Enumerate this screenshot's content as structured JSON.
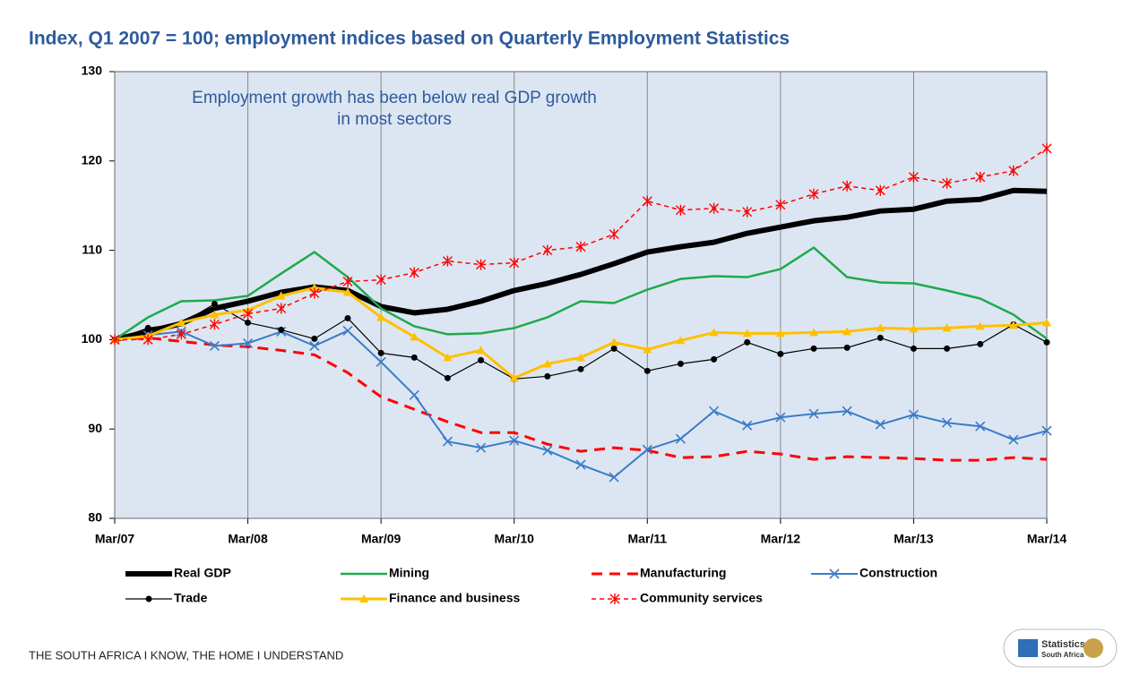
{
  "chart_data": {
    "type": "line",
    "title": "Index, Q1 2007 = 100; employment indices based on Quarterly Employment Statistics",
    "annotation": [
      "Employment growth has been below real GDP growth",
      "in most sectors"
    ],
    "categories": [
      "Mar/07",
      null,
      null,
      null,
      "Mar/08",
      null,
      null,
      null,
      "Mar/09",
      null,
      null,
      null,
      "Mar/10",
      null,
      null,
      null,
      "Mar/11",
      null,
      null,
      null,
      "Mar/12",
      null,
      null,
      null,
      "Mar/13",
      null,
      null,
      null,
      "Mar/14"
    ],
    "ylim": [
      80,
      130
    ],
    "yticks": [
      80,
      90,
      100,
      110,
      120,
      130
    ],
    "xgrid": true,
    "background": "#dce6f2",
    "legend": "bottom",
    "series": [
      {
        "name": "Real GDP",
        "color": "#000000",
        "width": 6,
        "dash": null,
        "marker": null,
        "values": [
          100,
          100.9,
          101.8,
          103.5,
          104.3,
          105.3,
          105.9,
          105.5,
          103.7,
          103.0,
          103.4,
          104.3,
          105.5,
          106.3,
          107.3,
          108.5,
          109.8,
          110.4,
          110.9,
          111.9,
          112.6,
          113.3,
          113.7,
          114.4,
          114.6,
          115.5,
          115.7,
          116.7,
          116.6
        ]
      },
      {
        "name": "Mining",
        "color": "#1faa4a",
        "width": 2.5,
        "dash": null,
        "marker": null,
        "values": [
          100,
          102.5,
          104.3,
          104.4,
          104.9,
          107.4,
          109.8,
          107.0,
          103.5,
          101.5,
          100.6,
          100.7,
          101.3,
          102.5,
          104.3,
          104.1,
          105.6,
          106.8,
          107.1,
          107.0,
          107.9,
          110.3,
          107.0,
          106.4,
          106.3,
          105.5,
          104.6,
          102.8,
          100.1
        ]
      },
      {
        "name": "Manufacturing",
        "color": "#ff0000",
        "width": 3,
        "dash": "12,8",
        "marker": null,
        "values": [
          100,
          100.2,
          99.8,
          99.4,
          99.2,
          98.8,
          98.3,
          96.3,
          93.6,
          92.2,
          90.8,
          89.6,
          89.6,
          88.3,
          87.5,
          87.9,
          87.6,
          86.8,
          86.9,
          87.5,
          87.2,
          86.6,
          86.9,
          86.8,
          86.7,
          86.5,
          86.5,
          86.8,
          86.6
        ]
      },
      {
        "name": "Construction",
        "color": "#3a7bc8",
        "width": 2,
        "dash": null,
        "marker": "x",
        "values": [
          100,
          100.5,
          100.9,
          99.3,
          99.6,
          100.9,
          99.3,
          101.0,
          97.5,
          93.8,
          88.6,
          87.9,
          88.7,
          87.6,
          86.0,
          84.6,
          87.7,
          88.9,
          92.0,
          90.4,
          91.3,
          91.7,
          92.0,
          90.5,
          91.6,
          90.7,
          90.3,
          88.8,
          89.8
        ]
      },
      {
        "name": "Trade",
        "color": "#000000",
        "width": 1.2,
        "dash": null,
        "marker": "circle",
        "values": [
          100,
          101.3,
          101.8,
          104.0,
          101.9,
          101.1,
          100.1,
          102.4,
          98.5,
          98.0,
          95.7,
          97.7,
          95.6,
          95.9,
          96.7,
          99.0,
          96.5,
          97.3,
          97.8,
          99.7,
          98.4,
          99.0,
          99.1,
          100.2,
          99.0,
          99.0,
          99.5,
          101.7,
          99.7
        ]
      },
      {
        "name": "Finance and business",
        "color": "#ffc000",
        "width": 3,
        "dash": null,
        "marker": "triangle",
        "values": [
          100,
          100.4,
          101.9,
          102.8,
          103.3,
          104.9,
          105.8,
          105.3,
          102.5,
          100.3,
          98.0,
          98.8,
          95.7,
          97.3,
          98.0,
          99.7,
          98.9,
          99.9,
          100.8,
          100.7,
          100.7,
          100.8,
          100.9,
          101.3,
          101.2,
          101.3,
          101.5,
          101.6,
          101.9
        ]
      },
      {
        "name": "Community services",
        "color": "#ff0000",
        "width": 1.5,
        "dash": "5,4",
        "marker": "star",
        "values": [
          100,
          100.0,
          100.6,
          101.7,
          102.9,
          103.5,
          105.2,
          106.5,
          106.7,
          107.5,
          108.8,
          108.4,
          108.6,
          110.0,
          110.4,
          111.8,
          115.5,
          114.5,
          114.7,
          114.3,
          115.1,
          116.3,
          117.2,
          116.7,
          118.2,
          117.5,
          118.2,
          118.9,
          121.4
        ]
      }
    ]
  },
  "footer": {
    "slogan": "THE SOUTH AFRICA I KNOW, THE HOME I UNDERSTAND",
    "logo": [
      "Statistics",
      "South Africa"
    ]
  }
}
